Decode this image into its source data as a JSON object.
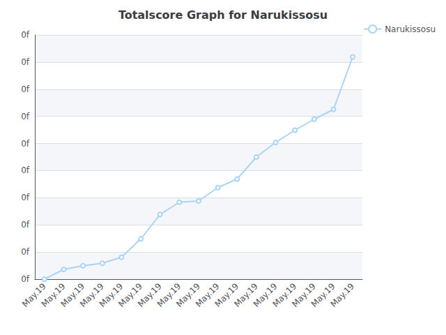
{
  "chart_data": {
    "type": "line",
    "title": "Totalscore Graph for Narukissosu",
    "categories": [
      "May.19",
      "May.19",
      "May.19",
      "May.19",
      "May.19",
      "May.19",
      "May.19",
      "May.19",
      "May.19",
      "May.19",
      "May.19",
      "May.19",
      "May.19",
      "May.19",
      "May.19",
      "May.19",
      "May.19"
    ],
    "series": [
      {
        "name": "Narukissosu",
        "color": "#aad4f5",
        "values": [
          0.0,
          0.04,
          0.055,
          0.065,
          0.09,
          0.165,
          0.265,
          0.315,
          0.32,
          0.375,
          0.41,
          0.5,
          0.56,
          0.61,
          0.655,
          0.695,
          0.91
        ]
      }
    ],
    "ylim": [
      0.0,
      1.0
    ],
    "yticks": [
      {
        "value": 0.0,
        "label": "0f"
      },
      {
        "value": 0.1111111111111111,
        "label": "0f"
      },
      {
        "value": 0.2222222222222222,
        "label": "0f"
      },
      {
        "value": 0.3333333333333333,
        "label": "0f"
      },
      {
        "value": 0.4444444444444444,
        "label": "0f"
      },
      {
        "value": 0.5555555555555556,
        "label": "0f"
      },
      {
        "value": 0.6666666666666666,
        "label": "0f"
      },
      {
        "value": 0.7777777777777777,
        "label": "0f"
      },
      {
        "value": 0.8888888888888888,
        "label": "0f"
      },
      {
        "value": 1.0,
        "label": "0f"
      }
    ],
    "grid": true,
    "legend": "upper right"
  }
}
